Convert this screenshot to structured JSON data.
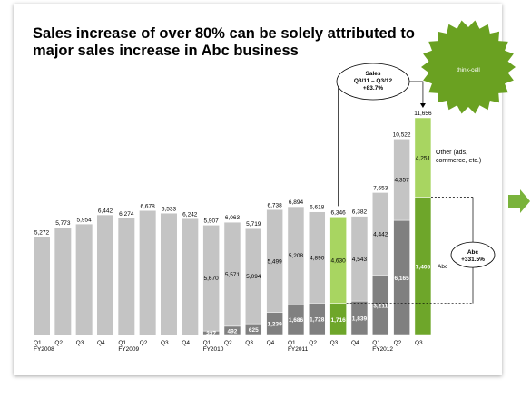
{
  "chart_data": {
    "type": "stacked_bar",
    "title": "Sales increase of over 80% can be solely attributed to major sales increase in Abc business",
    "categories": [
      "Q1",
      "Q2",
      "Q3",
      "Q4",
      "Q1",
      "Q2",
      "Q3",
      "Q4",
      "Q1",
      "Q2",
      "Q3",
      "Q4",
      "Q1",
      "Q2",
      "Q3",
      "Q4",
      "Q1",
      "Q2",
      "Q3"
    ],
    "fiscal_years": [
      "FY2008",
      null,
      null,
      null,
      "FY2009",
      null,
      null,
      null,
      "FY2010",
      null,
      null,
      null,
      "FY2011",
      null,
      null,
      null,
      "FY2012",
      null,
      null
    ],
    "totals": {
      "values": [
        5272,
        5773,
        5954,
        6442,
        6274,
        6678,
        6533,
        6242,
        5907,
        6063,
        5719,
        6738,
        6894,
        6618,
        6346,
        6382,
        7653,
        10522,
        11656
      ],
      "value_labels": [
        "5,272",
        "5,773",
        "5,954",
        "6,442",
        "6,274",
        "6,678",
        "6,533",
        "6,242",
        "5,907",
        "6,063",
        "5,719",
        "6,738",
        "6,894",
        "6,618",
        "6,346",
        "6,382",
        "7,653",
        "10,522",
        "11,656"
      ]
    },
    "series": [
      {
        "name": "Abc",
        "color": "#808080",
        "highlight_color": "#6ea62a",
        "values": [
          null,
          null,
          null,
          null,
          null,
          null,
          null,
          null,
          237,
          492,
          625,
          1239,
          1686,
          1728,
          1716,
          1839,
          3211,
          6165,
          7405
        ],
        "value_labels": [
          null,
          null,
          null,
          null,
          null,
          null,
          null,
          null,
          "237",
          "492",
          "625",
          "1,239",
          "1,686",
          "1,728",
          "1,716",
          "1,839",
          "3,211",
          "6,165",
          "7,405"
        ]
      },
      {
        "name": "Other (ads, commerce, etc.)",
        "color": "#c4c4c4",
        "highlight_color": "#a8d561",
        "values": [
          null,
          null,
          null,
          null,
          null,
          null,
          null,
          null,
          5670,
          5571,
          5094,
          5499,
          5208,
          4890,
          4630,
          4543,
          4442,
          4357,
          4251
        ],
        "value_labels": [
          null,
          null,
          null,
          null,
          null,
          null,
          null,
          null,
          "5,670",
          "5,571",
          "5,094",
          "5,499",
          "5,208",
          "4,890",
          "4,630",
          "4,543",
          "4,442",
          "4,357",
          "4,251"
        ]
      }
    ],
    "highlight": [
      14,
      18
    ],
    "annotations": {
      "sales_growth": [
        "Sales",
        "Q3/11 – Q3/12",
        "+83.7%"
      ],
      "abc_growth": [
        "Abc",
        "+331.5%"
      ]
    },
    "badge": "think-cell"
  }
}
